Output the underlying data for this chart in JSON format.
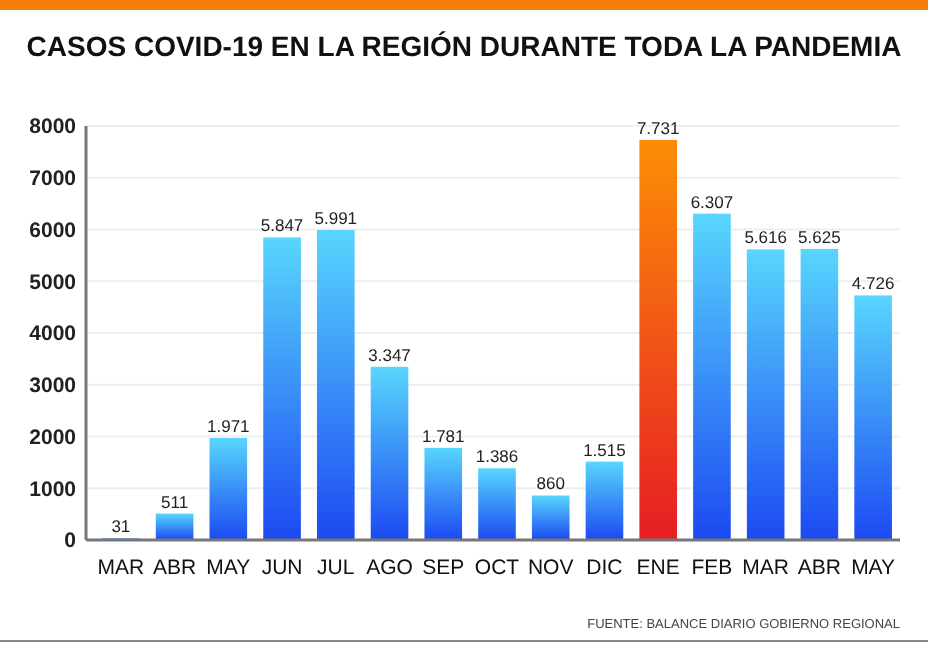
{
  "chart_data": {
    "type": "bar",
    "title": "CASOS COVID-19 EN LA REGIÓN DURANTE TODA LA PANDEMIA",
    "categories": [
      "MAR",
      "ABR",
      "MAY",
      "JUN",
      "JUL",
      "AGO",
      "SEP",
      "OCT",
      "NOV",
      "DIC",
      "ENE",
      "FEB",
      "MAR",
      "ABR",
      "MAY"
    ],
    "values": [
      31,
      511,
      1971,
      5847,
      5991,
      3347,
      1781,
      1386,
      860,
      1515,
      7731,
      6307,
      5616,
      5625,
      4726
    ],
    "value_labels": [
      "31",
      "511",
      "1.971",
      "5.847",
      "5.991",
      "3.347",
      "1.781",
      "1.386",
      "860",
      "1.515",
      "7.731",
      "6.307",
      "5.616",
      "5.625",
      "4.726"
    ],
    "colors": [
      "#2f86f6",
      "#2f86f6",
      "#2f86f6",
      "#2f86f6",
      "#2f86f6",
      "#2f86f6",
      "#2f86f6",
      "#2f86f6",
      "#2f86f6",
      "#2f86f6",
      "#f04818",
      "#2f86f6",
      "#2f86f6",
      "#2f86f6",
      "#2f86f6"
    ],
    "ylim": [
      0,
      8000
    ],
    "yticks": [
      0,
      1000,
      2000,
      3000,
      4000,
      5000,
      6000,
      7000,
      8000
    ],
    "grid": "y",
    "annotations": [
      "FUENTE: BALANCE DIARIO GOBIERNO REGIONAL"
    ]
  }
}
